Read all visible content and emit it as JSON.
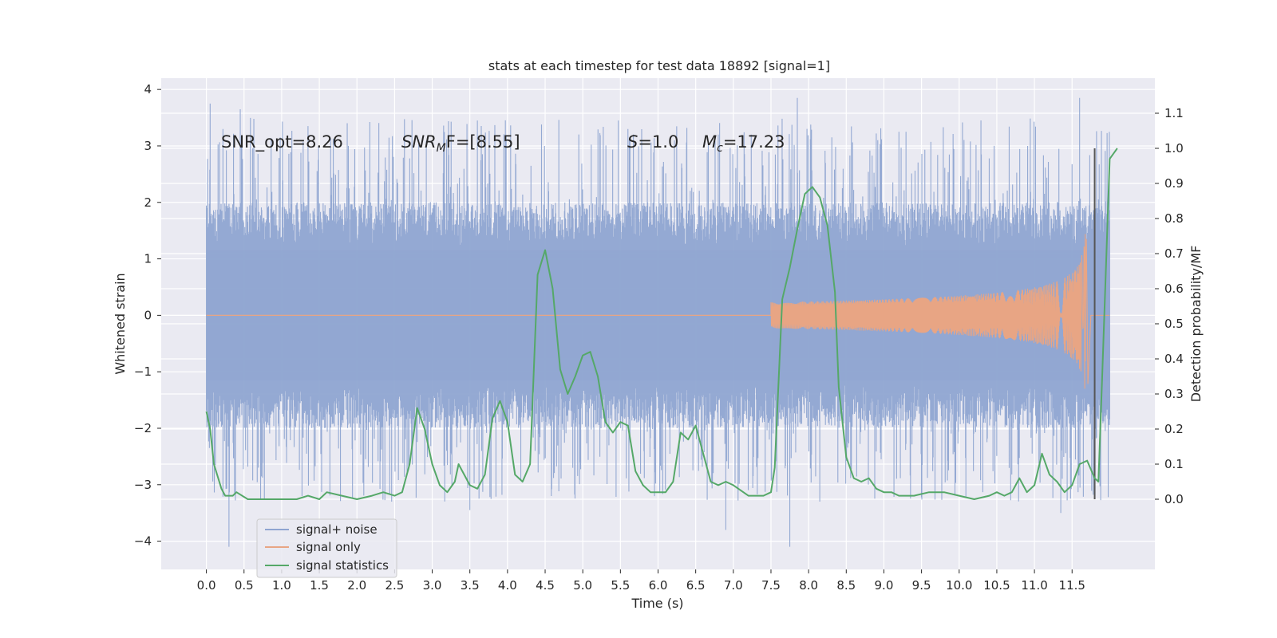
{
  "chart_data": {
    "type": "line",
    "title": "stats at each timestep for test data 18892 [signal=1]",
    "xlabel": "Time (s)",
    "ylabel": "Whitened strain",
    "y2label": "Detection probability/MF",
    "xlim": [
      -0.6,
      12.6
    ],
    "ylim": [
      -4.5,
      4.2
    ],
    "y2lim": [
      -0.2,
      1.2
    ],
    "xticks": [
      0.0,
      0.5,
      1.0,
      1.5,
      2.0,
      2.5,
      3.0,
      3.5,
      4.0,
      4.5,
      5.0,
      5.5,
      6.0,
      6.5,
      7.0,
      7.5,
      8.0,
      8.5,
      9.0,
      9.5,
      10.0,
      10.5,
      11.0,
      11.5
    ],
    "xtick_labels": [
      "0.0",
      "0.5",
      "1.0",
      "1.5",
      "2.0",
      "2.5",
      "3.0",
      "3.5",
      "4.0",
      "4.5",
      "5.0",
      "5.5",
      "6.0",
      "6.5",
      "7.0",
      "7.5",
      "8.0",
      "8.5",
      "9.0",
      "9.5",
      "10.0",
      "10.5",
      "11.0",
      "11.5"
    ],
    "yticks": [
      -4,
      -3,
      -2,
      -1,
      0,
      1,
      2,
      3,
      4
    ],
    "ytick_labels": [
      "−4",
      "−3",
      "−2",
      "−1",
      "0",
      "1",
      "2",
      "3",
      "4"
    ],
    "y2ticks": [
      0.0,
      0.1,
      0.2,
      0.3,
      0.4,
      0.5,
      0.6,
      0.7,
      0.8,
      0.9,
      1.0,
      1.1
    ],
    "y2tick_labels": [
      "0.0",
      "0.1",
      "0.2",
      "0.3",
      "0.4",
      "0.5",
      "0.6",
      "0.7",
      "0.8",
      "0.9",
      "1.0",
      "1.1"
    ],
    "grid": true,
    "legend_position": "lower-left",
    "annotations": {
      "snr_opt": "SNR_opt=8.26",
      "snr_mf_sym": "SNR",
      "snr_mf_sub": "M",
      "snr_mf_rest": "F=[8.55]",
      "s_sym": "S",
      "s_rest": "=1.0",
      "mc_sym": "M",
      "mc_sub": "c",
      "mc_rest": "=17.23"
    },
    "marker_line": {
      "x": 11.8,
      "y2_range": [
        0.0,
        1.0
      ],
      "color": "#555555"
    },
    "series": [
      {
        "name": "signal+ noise",
        "color": "#8fa5d1",
        "axis": "left",
        "t_range": [
          0.0,
          12.0
        ],
        "envelope_low": -2.0,
        "envelope_high": 2.0,
        "peaks": [
          [
            0.05,
            3.75
          ],
          [
            0.45,
            3.65
          ],
          [
            1.35,
            3.35
          ],
          [
            3.6,
            3.45
          ],
          [
            5.6,
            3.3
          ],
          [
            6.8,
            3.2
          ],
          [
            7.85,
            3.85
          ],
          [
            9.2,
            3.25
          ],
          [
            11.6,
            3.85
          ],
          [
            0.3,
            -4.1
          ],
          [
            3.5,
            -3.45
          ],
          [
            6.9,
            -3.8
          ],
          [
            7.75,
            -4.1
          ],
          [
            11.35,
            -3.5
          ]
        ]
      },
      {
        "name": "signal only",
        "color": "#e8a584",
        "axis": "left",
        "chirp": {
          "t_start": 7.5,
          "t_merge": 11.68,
          "peak_amplitude": 1.35,
          "end": 11.75
        }
      },
      {
        "name": "signal statistics",
        "color": "#55a868",
        "axis": "right",
        "points": [
          [
            0.0,
            0.25
          ],
          [
            0.05,
            0.2
          ],
          [
            0.1,
            0.1
          ],
          [
            0.2,
            0.03
          ],
          [
            0.25,
            0.01
          ],
          [
            0.35,
            0.01
          ],
          [
            0.4,
            0.02
          ],
          [
            0.55,
            0.0
          ],
          [
            0.8,
            0.0
          ],
          [
            1.0,
            0.0
          ],
          [
            1.2,
            0.0
          ],
          [
            1.35,
            0.01
          ],
          [
            1.5,
            0.0
          ],
          [
            1.6,
            0.02
          ],
          [
            1.8,
            0.01
          ],
          [
            2.0,
            0.0
          ],
          [
            2.2,
            0.01
          ],
          [
            2.35,
            0.02
          ],
          [
            2.5,
            0.01
          ],
          [
            2.6,
            0.02
          ],
          [
            2.7,
            0.1
          ],
          [
            2.8,
            0.26
          ],
          [
            2.9,
            0.2
          ],
          [
            3.0,
            0.1
          ],
          [
            3.1,
            0.04
          ],
          [
            3.2,
            0.02
          ],
          [
            3.3,
            0.05
          ],
          [
            3.35,
            0.1
          ],
          [
            3.5,
            0.04
          ],
          [
            3.6,
            0.03
          ],
          [
            3.7,
            0.07
          ],
          [
            3.8,
            0.23
          ],
          [
            3.9,
            0.28
          ],
          [
            4.0,
            0.22
          ],
          [
            4.1,
            0.07
          ],
          [
            4.2,
            0.05
          ],
          [
            4.3,
            0.1
          ],
          [
            4.4,
            0.64
          ],
          [
            4.5,
            0.71
          ],
          [
            4.6,
            0.6
          ],
          [
            4.7,
            0.37
          ],
          [
            4.8,
            0.3
          ],
          [
            4.9,
            0.35
          ],
          [
            5.0,
            0.41
          ],
          [
            5.1,
            0.42
          ],
          [
            5.2,
            0.35
          ],
          [
            5.3,
            0.22
          ],
          [
            5.4,
            0.19
          ],
          [
            5.5,
            0.22
          ],
          [
            5.6,
            0.21
          ],
          [
            5.7,
            0.08
          ],
          [
            5.8,
            0.04
          ],
          [
            5.9,
            0.02
          ],
          [
            6.1,
            0.02
          ],
          [
            6.2,
            0.05
          ],
          [
            6.3,
            0.19
          ],
          [
            6.4,
            0.17
          ],
          [
            6.5,
            0.21
          ],
          [
            6.6,
            0.13
          ],
          [
            6.7,
            0.05
          ],
          [
            6.8,
            0.04
          ],
          [
            6.9,
            0.05
          ],
          [
            7.0,
            0.04
          ],
          [
            7.2,
            0.01
          ],
          [
            7.4,
            0.01
          ],
          [
            7.5,
            0.02
          ],
          [
            7.55,
            0.09
          ],
          [
            7.65,
            0.57
          ],
          [
            7.75,
            0.66
          ],
          [
            7.85,
            0.77
          ],
          [
            7.95,
            0.87
          ],
          [
            8.05,
            0.89
          ],
          [
            8.15,
            0.86
          ],
          [
            8.25,
            0.78
          ],
          [
            8.35,
            0.59
          ],
          [
            8.4,
            0.32
          ],
          [
            8.5,
            0.12
          ],
          [
            8.6,
            0.06
          ],
          [
            8.7,
            0.05
          ],
          [
            8.8,
            0.06
          ],
          [
            8.9,
            0.03
          ],
          [
            9.0,
            0.02
          ],
          [
            9.1,
            0.02
          ],
          [
            9.2,
            0.01
          ],
          [
            9.4,
            0.01
          ],
          [
            9.6,
            0.02
          ],
          [
            9.8,
            0.02
          ],
          [
            10.0,
            0.01
          ],
          [
            10.2,
            0.0
          ],
          [
            10.4,
            0.01
          ],
          [
            10.5,
            0.02
          ],
          [
            10.6,
            0.01
          ],
          [
            10.7,
            0.02
          ],
          [
            10.8,
            0.06
          ],
          [
            10.9,
            0.02
          ],
          [
            11.0,
            0.04
          ],
          [
            11.1,
            0.13
          ],
          [
            11.2,
            0.07
          ],
          [
            11.3,
            0.05
          ],
          [
            11.4,
            0.02
          ],
          [
            11.5,
            0.04
          ],
          [
            11.6,
            0.1
          ],
          [
            11.7,
            0.11
          ],
          [
            11.8,
            0.06
          ],
          [
            11.85,
            0.05
          ],
          [
            11.9,
            0.35
          ],
          [
            12.0,
            0.97
          ],
          [
            12.1,
            1.0
          ]
        ]
      }
    ]
  }
}
